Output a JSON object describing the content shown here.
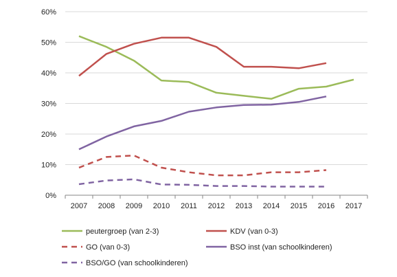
{
  "chart_data": {
    "type": "line",
    "categories": [
      "2007",
      "2008",
      "2009",
      "2010",
      "2011",
      "2012",
      "2013",
      "2014",
      "2015",
      "2016",
      "2017"
    ],
    "ylim": [
      0,
      60
    ],
    "yticks": [
      "0%",
      "10%",
      "20%",
      "30%",
      "40%",
      "50%",
      "60%"
    ],
    "grid": true,
    "legend_position": "bottom",
    "series": [
      {
        "name": "peutergroep (van 2-3)",
        "color": "#9BBB59",
        "dash": "solid",
        "values": [
          52,
          48.5,
          44,
          37.5,
          37,
          33.5,
          32.5,
          31.5,
          34.8,
          35.5,
          37.8
        ]
      },
      {
        "name": "KDV (van 0-3)",
        "color": "#C0504D",
        "dash": "solid",
        "values": [
          39,
          46.2,
          49.5,
          51.5,
          51.5,
          48.5,
          42,
          42,
          41.5,
          43.2,
          null
        ]
      },
      {
        "name": "GO (van 0-3)",
        "color": "#C0504D",
        "dash": "dashed",
        "values": [
          9,
          12.5,
          13,
          9,
          7.5,
          6.5,
          6.5,
          7.5,
          7.5,
          8.2,
          null
        ]
      },
      {
        "name": "BSO inst (van schoolkinderen)",
        "color": "#8064A2",
        "dash": "solid",
        "values": [
          15,
          19.2,
          22.5,
          24.3,
          27.3,
          28.7,
          29.5,
          29.6,
          30.5,
          32.3,
          null
        ]
      },
      {
        "name": "BSO/GO (van schoolkinderen)",
        "color": "#8064A2",
        "dash": "dashed",
        "values": [
          3.6,
          4.8,
          5.2,
          3.5,
          3.4,
          3.0,
          3.0,
          2.8,
          2.8,
          2.8,
          null
        ]
      }
    ]
  }
}
